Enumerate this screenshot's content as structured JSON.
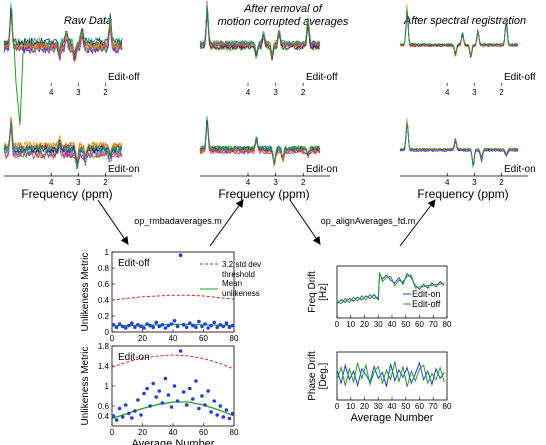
{
  "headings": {
    "raw": "Raw Data",
    "removal_line1": "After removal of",
    "removal_line2": "motion corrupted averages",
    "registration": "After spectral registration"
  },
  "spectra": {
    "xlabel": "Frequency (ppm)",
    "ticks": [
      "4",
      "3",
      "2"
    ],
    "label_off": "Edit-off",
    "label_on": "Edit-on"
  },
  "steps": {
    "step1": "op_rmbadaverages.m",
    "step2": "op_alignAverages_fd.m"
  },
  "colors": {
    "scatter": "#1f3fd8",
    "threshold": "#e02020",
    "mean": "#22a022",
    "freq_on": "#1f3fd8",
    "freq_off": "#22a022"
  },
  "chart_data": [
    {
      "type": "scatter",
      "panel": "Edit-off",
      "ylabel": "Unlikeness Metric",
      "ylim": [
        0,
        1
      ],
      "yticks": [
        "0",
        "0.2",
        "0.4",
        "0.6",
        "0.8",
        "1"
      ],
      "xlim": [
        0,
        80
      ],
      "xticks": [
        "0",
        "20",
        "40",
        "60",
        "80"
      ],
      "legend": {
        "threshold": "3.2 std dev threshold",
        "mean": "Mean unlikeness"
      },
      "series": [
        {
          "name": "points",
          "x": [
            1,
            3,
            5,
            7,
            9,
            11,
            13,
            15,
            17,
            19,
            21,
            23,
            25,
            27,
            29,
            31,
            33,
            35,
            37,
            39,
            41,
            43,
            45,
            47,
            49,
            51,
            53,
            55,
            57,
            59,
            61,
            63,
            65,
            67,
            69,
            71,
            73,
            75,
            77,
            79
          ],
          "y": [
            0.09,
            0.06,
            0.1,
            0.07,
            0.05,
            0.08,
            0.11,
            0.06,
            0.09,
            0.07,
            0.05,
            0.1,
            0.08,
            0.06,
            0.12,
            0.07,
            0.09,
            0.05,
            0.08,
            0.1,
            0.14,
            0.07,
            0.96,
            0.09,
            0.06,
            0.11,
            0.08,
            0.06,
            0.13,
            0.07,
            0.1,
            0.05,
            0.08,
            0.12,
            0.06,
            0.09,
            0.07,
            0.11,
            0.06,
            0.08
          ]
        },
        {
          "name": "3.2 std dev threshold",
          "x": [
            0,
            10,
            20,
            30,
            40,
            50,
            60,
            70,
            80
          ],
          "y": [
            0.4,
            0.42,
            0.44,
            0.45,
            0.46,
            0.46,
            0.45,
            0.43,
            0.41
          ]
        },
        {
          "name": "Mean unlikeness",
          "x": [
            0,
            10,
            20,
            30,
            40,
            50,
            60,
            70,
            80
          ],
          "y": [
            0.08,
            0.08,
            0.085,
            0.09,
            0.095,
            0.095,
            0.09,
            0.085,
            0.08
          ]
        }
      ]
    },
    {
      "type": "scatter",
      "panel": "Edit-on",
      "ylabel": "Unlikeness Metric",
      "xlabel": "Average Number",
      "ylim": [
        0.2,
        1.8
      ],
      "yticks": [
        "0.4",
        "0.6",
        "1",
        "1.4",
        "1.8"
      ],
      "xlim": [
        0,
        80
      ],
      "xticks": [
        "0",
        "20",
        "40",
        "60",
        "80"
      ],
      "series": [
        {
          "name": "points",
          "x": [
            1,
            3,
            5,
            7,
            9,
            11,
            13,
            15,
            17,
            19,
            21,
            23,
            25,
            27,
            29,
            31,
            33,
            35,
            37,
            39,
            41,
            43,
            45,
            47,
            49,
            51,
            53,
            55,
            57,
            59,
            61,
            63,
            65,
            67,
            69,
            71,
            73,
            75,
            77,
            79
          ],
          "y": [
            0.4,
            0.32,
            0.55,
            0.38,
            0.62,
            0.45,
            0.36,
            0.5,
            0.72,
            0.42,
            0.85,
            0.95,
            0.6,
            1.05,
            0.78,
            0.9,
            0.66,
            1.15,
            0.82,
            0.58,
            1.0,
            0.7,
            1.7,
            0.88,
            0.62,
            0.95,
            0.74,
            1.1,
            0.55,
            0.8,
            0.62,
            0.9,
            0.48,
            0.7,
            0.42,
            0.6,
            0.38,
            0.52,
            0.35,
            0.45
          ]
        },
        {
          "name": "threshold",
          "x": [
            0,
            10,
            20,
            30,
            40,
            50,
            60,
            70,
            80
          ],
          "y": [
            1.38,
            1.48,
            1.56,
            1.6,
            1.62,
            1.6,
            1.55,
            1.46,
            1.34
          ]
        },
        {
          "name": "mean",
          "x": [
            0,
            10,
            20,
            30,
            40,
            50,
            60,
            70,
            80
          ],
          "y": [
            0.35,
            0.45,
            0.55,
            0.63,
            0.68,
            0.68,
            0.62,
            0.52,
            0.4
          ]
        }
      ]
    },
    {
      "type": "line",
      "ylabel_line1": "Freq Drift",
      "ylabel_line2": "[Hz]",
      "xlim": [
        0,
        80
      ],
      "xticks": [
        "0",
        "10",
        "20",
        "30",
        "40",
        "50",
        "60",
        "70",
        "80"
      ],
      "ylim": [
        -2,
        2
      ],
      "series": [
        {
          "name": "Edit-on",
          "x": [
            0,
            3,
            6,
            9,
            12,
            15,
            18,
            21,
            24,
            27,
            30,
            31,
            33,
            36,
            39,
            42,
            45,
            48,
            51,
            54,
            57,
            60,
            63,
            66,
            69,
            72,
            75,
            78
          ],
          "y": [
            -0.9,
            -0.6,
            -0.8,
            -0.5,
            -0.7,
            -0.4,
            -0.6,
            -0.3,
            -0.5,
            -0.2,
            -0.6,
            1.4,
            1.0,
            1.3,
            0.9,
            0.7,
            1.1,
            0.6,
            1.4,
            1.1,
            0.5,
            0.2,
            0.6,
            0.3,
            0.7,
            0.4,
            0.8,
            0.5
          ]
        },
        {
          "name": "Edit-off",
          "x": [
            0,
            3,
            6,
            9,
            12,
            15,
            18,
            21,
            24,
            27,
            30,
            31,
            33,
            36,
            39,
            42,
            45,
            48,
            51,
            54,
            57,
            60,
            63,
            66,
            69,
            72,
            75,
            78
          ],
          "y": [
            -0.7,
            -0.9,
            -0.5,
            -0.8,
            -0.4,
            -0.7,
            -0.3,
            -0.6,
            -0.2,
            -0.5,
            -0.4,
            1.5,
            0.8,
            1.1,
            1.2,
            0.5,
            0.9,
            0.8,
            1.2,
            1.3,
            0.3,
            0.4,
            0.4,
            0.5,
            0.5,
            0.6,
            0.6,
            0.7
          ]
        }
      ]
    },
    {
      "type": "line",
      "ylabel_line1": "Phase Drift",
      "ylabel_line2": "[Deg.]",
      "xlabel": "Average Number",
      "xlim": [
        0,
        80
      ],
      "xticks": [
        "0",
        "10",
        "20",
        "30",
        "40",
        "50",
        "60",
        "70",
        "80"
      ],
      "ylim": [
        -2,
        2
      ],
      "series": [
        {
          "name": "Edit-on",
          "x": [
            0,
            3,
            6,
            9,
            12,
            15,
            18,
            21,
            24,
            27,
            30,
            33,
            36,
            39,
            42,
            45,
            48,
            51,
            54,
            57,
            60,
            63,
            66,
            69,
            72,
            75,
            78
          ],
          "y": [
            0.5,
            -0.6,
            0.9,
            -0.3,
            0.4,
            -0.8,
            0.6,
            0.1,
            -0.5,
            0.8,
            -0.2,
            0.3,
            -0.9,
            1.0,
            -0.4,
            0.5,
            -0.1,
            0.7,
            -0.6,
            0.2,
            1.1,
            -0.3,
            0.4,
            -0.7,
            0.6,
            -0.2,
            0.3
          ]
        },
        {
          "name": "Edit-off",
          "x": [
            0,
            3,
            6,
            9,
            12,
            15,
            18,
            21,
            24,
            27,
            30,
            33,
            36,
            39,
            42,
            45,
            48,
            51,
            54,
            57,
            60,
            63,
            66,
            69,
            72,
            75,
            78
          ],
          "y": [
            -0.3,
            0.7,
            -0.8,
            0.6,
            -0.5,
            1.1,
            -0.2,
            0.9,
            -0.7,
            0.3,
            0.8,
            -0.6,
            0.5,
            -0.3,
            1.2,
            -0.5,
            0.8,
            -0.9,
            0.4,
            -0.4,
            0.6,
            0.9,
            -0.6,
            0.2,
            -0.3,
            0.7,
            -0.5
          ]
        }
      ]
    }
  ]
}
